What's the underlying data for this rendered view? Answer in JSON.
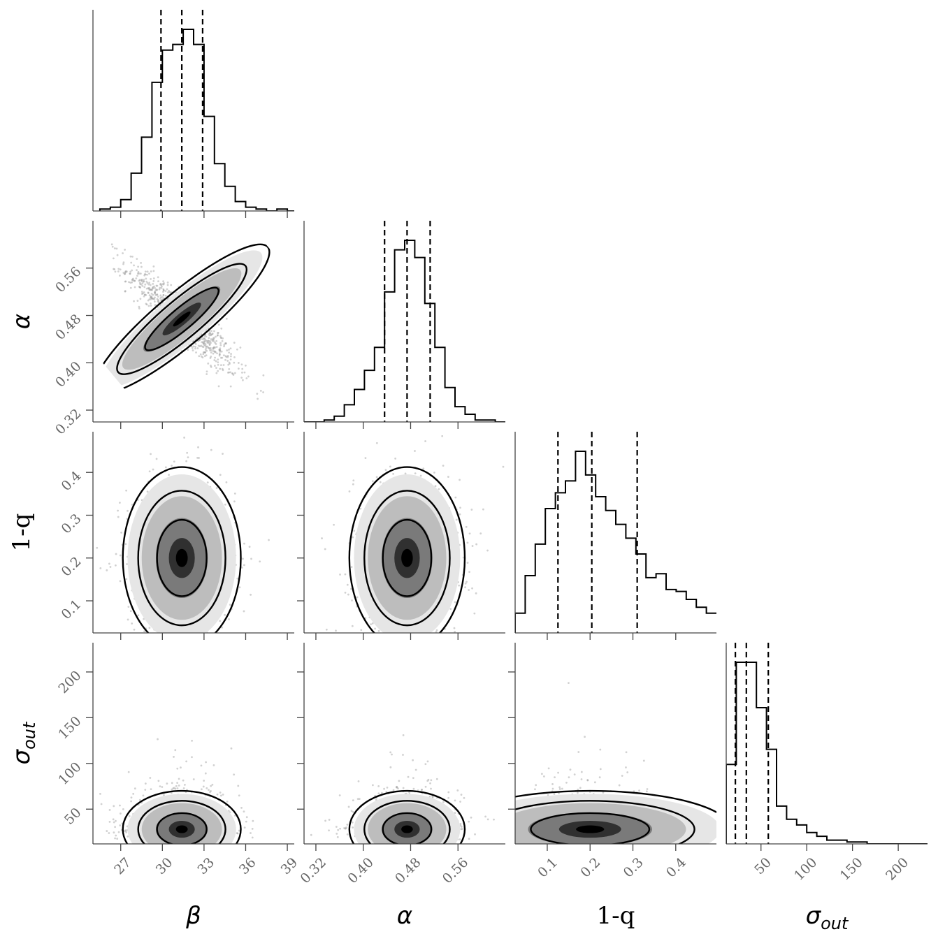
{
  "chart_data": {
    "type": "corner",
    "parameters": [
      {
        "key": "beta",
        "label": "β",
        "range": [
          25.0,
          39.5
        ],
        "ticks": [
          27,
          30,
          33,
          36,
          39
        ],
        "tick_labels": [
          "27",
          "30",
          "33",
          "36",
          "39"
        ],
        "quantiles": [
          29.9,
          31.4,
          32.9
        ]
      },
      {
        "key": "alpha",
        "label": "α",
        "range": [
          0.3,
          0.64
        ],
        "ticks": [
          0.32,
          0.4,
          0.48,
          0.56
        ],
        "tick_labels": [
          "0.32",
          "0.40",
          "0.48",
          "0.56"
        ],
        "quantiles": [
          0.436,
          0.474,
          0.513
        ]
      },
      {
        "key": "one_minus_q",
        "label": "1-q",
        "range": [
          0.025,
          0.495
        ],
        "ticks": [
          0.1,
          0.2,
          0.3,
          0.4
        ],
        "tick_labels": [
          "0.1",
          "0.2",
          "0.3",
          "0.4"
        ],
        "quantiles": [
          0.125,
          0.204,
          0.31
        ]
      },
      {
        "key": "sigma_out",
        "label": "σ",
        "label_sub": "out",
        "range": [
          12,
          232
        ],
        "ticks": [
          50,
          100,
          150,
          200
        ],
        "tick_labels": [
          "50",
          "100",
          "150",
          "200"
        ],
        "quantiles": [
          22,
          34,
          58
        ]
      }
    ],
    "histograms": {
      "beta": {
        "bins": [
          25.5,
          26.25,
          27,
          27.75,
          28.5,
          29.25,
          30,
          30.75,
          31.5,
          32.25,
          33,
          33.75,
          34.5,
          35.25,
          36,
          36.75,
          37.5,
          38.25,
          39,
          39.75
        ],
        "counts": [
          1,
          2,
          6,
          20,
          39,
          68,
          85,
          88,
          96,
          88,
          50,
          25,
          13,
          5,
          2,
          1,
          0,
          1,
          0
        ]
      },
      "alpha": {
        "bins": [
          0.3,
          0.317,
          0.334,
          0.351,
          0.368,
          0.385,
          0.402,
          0.419,
          0.436,
          0.453,
          0.47,
          0.487,
          0.504,
          0.521,
          0.538,
          0.555,
          0.572,
          0.589,
          0.606,
          0.623,
          0.64
        ],
        "counts": [
          0,
          0,
          1,
          3,
          9,
          17,
          27,
          39,
          68,
          90,
          95,
          86,
          62,
          39,
          18,
          8,
          4,
          1,
          1,
          0
        ]
      },
      "one_minus_q": {
        "bins": [
          0.025,
          0.0485,
          0.072,
          0.0955,
          0.119,
          0.1425,
          0.166,
          0.1895,
          0.213,
          0.2365,
          0.26,
          0.2835,
          0.307,
          0.3305,
          0.354,
          0.3775,
          0.401,
          0.4245,
          0.448,
          0.4715,
          0.495
        ],
        "counts": [
          10,
          29,
          45,
          63,
          71,
          77,
          92,
          80,
          69,
          62,
          55,
          48,
          40,
          28,
          30,
          22,
          21,
          17,
          13,
          10
        ]
      },
      "sigma_out": {
        "bins": [
          12,
          23,
          34,
          45,
          56,
          67,
          78,
          89,
          100,
          111,
          122,
          133,
          144,
          155,
          166,
          177,
          188,
          199,
          210,
          221,
          232
        ],
        "counts": [
          42,
          96,
          96,
          72,
          50,
          20,
          13,
          10,
          6,
          4,
          2,
          2,
          1,
          1,
          0,
          0,
          0,
          0,
          0,
          0
        ]
      }
    },
    "scatter_centers": {
      "alpha_vs_beta": {
        "center": [
          31.4,
          0.474
        ],
        "sd": [
          1.7,
          0.039
        ],
        "corr": -0.9
      },
      "one_minus_q_vs_beta": {
        "center": [
          31.4,
          0.2
        ],
        "sd": [
          1.7,
          0.085
        ],
        "corr": 0.0
      },
      "one_minus_q_vs_alpha": {
        "center": [
          0.474,
          0.2
        ],
        "sd": [
          0.039,
          0.085
        ],
        "corr": 0.0
      },
      "sigma_out_vs_beta": {
        "center": [
          31.4,
          30
        ],
        "sd": [
          1.7,
          18
        ],
        "corr": 0.0
      },
      "sigma_out_vs_alpha": {
        "center": [
          0.474,
          30
        ],
        "sd": [
          0.039,
          18
        ],
        "corr": 0.0
      },
      "sigma_out_vs_one_minus_q": {
        "center": [
          0.2,
          30
        ],
        "sd": [
          0.085,
          18
        ],
        "corr": 0.0
      }
    },
    "contour_levels": 3,
    "grid": false
  }
}
